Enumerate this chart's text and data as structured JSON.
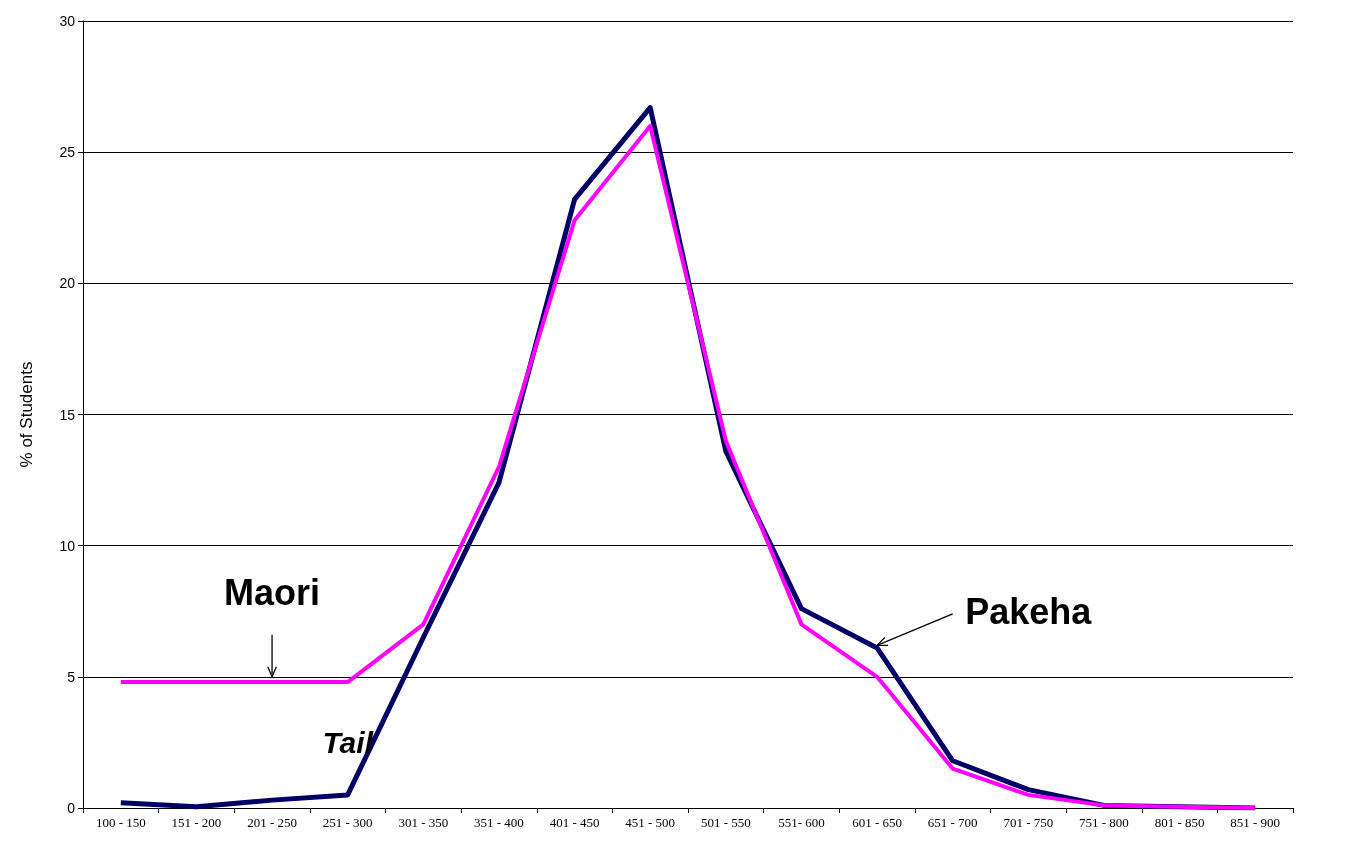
{
  "chart_data": {
    "type": "line",
    "ylabel": "% of Students",
    "categories": [
      "100 - 150",
      "151 - 200",
      "201 - 250",
      "251 - 300",
      "301 - 350",
      "351 - 400",
      "401 - 450",
      "451 - 500",
      "501 - 550",
      "551- 600",
      "601 - 650",
      "651 - 700",
      "701 - 750",
      "751 - 800",
      "801 - 850",
      "851 - 900"
    ],
    "series": [
      {
        "name": "Pakeha",
        "color": "#000066",
        "values": [
          0.2,
          0.05,
          0.3,
          0.5,
          6.5,
          12.4,
          23.2,
          26.7,
          13.6,
          7.6,
          6.1,
          1.8,
          0.7,
          0.1,
          0.05,
          0
        ]
      },
      {
        "name": "Maori",
        "color": "#ff00ff",
        "values": [
          4.8,
          4.8,
          4.8,
          4.8,
          7.0,
          13.0,
          22.4,
          26.0,
          14.0,
          7.0,
          5.0,
          1.5,
          0.5,
          0.1,
          0.05,
          0
        ]
      }
    ],
    "annotations": [
      "Tail"
    ],
    "ylim": [
      0,
      30
    ],
    "yticks": [
      0,
      5,
      10,
      15,
      20,
      25,
      30
    ],
    "grid": "y",
    "legend": false,
    "marker": "none",
    "line_style": "solid"
  }
}
